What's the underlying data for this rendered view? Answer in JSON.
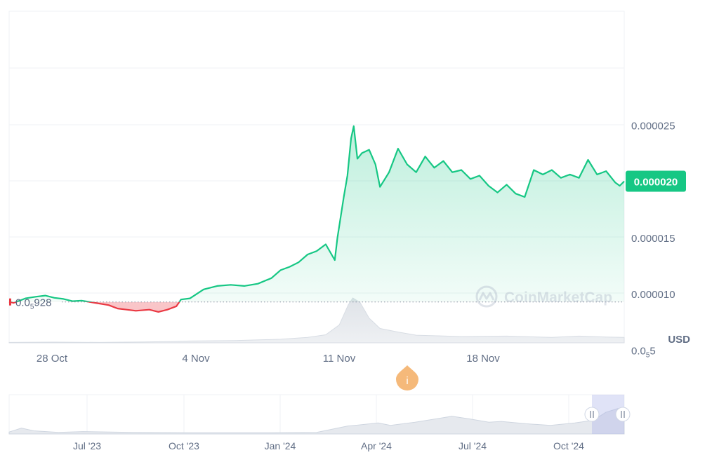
{
  "colors": {
    "up": "#16c784",
    "down": "#ea3943",
    "grid": "#eff2f5",
    "axis_text": "#616e85",
    "volume": "#e9ecf0",
    "info_badge": "#f5b97a"
  },
  "currency_label": "USD",
  "baseline_label": {
    "prefix": "0.0",
    "sub": "5",
    "suffix": "928"
  },
  "watermark": "CoinMarketCap",
  "info_badge_label": "i",
  "chart_data": {
    "type": "area",
    "x_axis_ticks": [
      "28 Oct",
      "4 Nov",
      "11 Nov",
      "18 Nov"
    ],
    "y_axis_ticks": [
      {
        "value": 2.5e-05,
        "label": "0.000025"
      },
      {
        "value": 1.5e-05,
        "label": "0.000015"
      },
      {
        "value": 1e-05,
        "label": "0.000010"
      },
      {
        "value": 5e-06,
        "prefix": "0.0",
        "sub": "5",
        "suffix": "5"
      }
    ],
    "ylim": [
      1e-06,
      3e-05
    ],
    "baseline_value": 9.282e-06,
    "current_price": {
      "value": 2e-05,
      "label": "0.000020"
    },
    "price_points": [
      [
        0.0,
        9.3e-06
      ],
      [
        0.5,
        9.2e-06
      ],
      [
        1.0,
        9.35e-06
      ],
      [
        1.8,
        9.6e-06
      ],
      [
        3.0,
        9.75e-06
      ],
      [
        4.0,
        9.85e-06
      ],
      [
        5.0,
        9.65e-06
      ],
      [
        6.0,
        9.55e-06
      ],
      [
        7.0,
        9.35e-06
      ],
      [
        8.0,
        9.4e-06
      ],
      [
        9.5,
        9.2e-06
      ],
      [
        11.0,
        9e-06
      ],
      [
        12.0,
        8.7e-06
      ],
      [
        13.0,
        8.6e-06
      ],
      [
        14.0,
        8.5e-06
      ],
      [
        15.5,
        8.6e-06
      ],
      [
        16.5,
        8.4e-06
      ],
      [
        17.5,
        8.6e-06
      ],
      [
        18.5,
        8.9e-06
      ],
      [
        19.0,
        9.5e-06
      ],
      [
        20.0,
        9.6e-06
      ],
      [
        21.5,
        1.04e-05
      ],
      [
        23.0,
        1.07e-05
      ],
      [
        24.5,
        1.08e-05
      ],
      [
        26.0,
        1.07e-05
      ],
      [
        27.5,
        1.09e-05
      ],
      [
        29.0,
        1.14e-05
      ],
      [
        30.0,
        1.21e-05
      ],
      [
        31.0,
        1.24e-05
      ],
      [
        32.0,
        1.28e-05
      ],
      [
        33.0,
        1.35e-05
      ],
      [
        34.0,
        1.38e-05
      ],
      [
        35.0,
        1.44e-05
      ],
      [
        36.0,
        1.3e-05
      ],
      [
        36.3,
        1.5e-05
      ],
      [
        37.0,
        1.86e-05
      ],
      [
        37.4,
        2.05e-05
      ],
      [
        37.8,
        2.38e-05
      ],
      [
        38.1,
        2.49e-05
      ],
      [
        38.5,
        2.2e-05
      ],
      [
        39.0,
        2.25e-05
      ],
      [
        39.8,
        2.28e-05
      ],
      [
        40.5,
        2.15e-05
      ],
      [
        41.0,
        1.95e-05
      ],
      [
        42.0,
        2.08e-05
      ],
      [
        43.0,
        2.29e-05
      ],
      [
        44.0,
        2.15e-05
      ],
      [
        45.0,
        2.08e-05
      ],
      [
        46.0,
        2.22e-05
      ],
      [
        47.0,
        2.12e-05
      ],
      [
        48.0,
        2.18e-05
      ],
      [
        49.0,
        2.08e-05
      ],
      [
        50.0,
        2.1e-05
      ],
      [
        51.0,
        2.02e-05
      ],
      [
        52.0,
        2.05e-05
      ],
      [
        53.0,
        1.96e-05
      ],
      [
        54.0,
        1.9e-05
      ],
      [
        55.0,
        1.97e-05
      ],
      [
        56.0,
        1.89e-05
      ],
      [
        57.0,
        1.86e-05
      ],
      [
        58.0,
        2.1e-05
      ],
      [
        59.0,
        2.06e-05
      ],
      [
        60.0,
        2.1e-05
      ],
      [
        61.0,
        2.03e-05
      ],
      [
        62.0,
        2.06e-05
      ],
      [
        63.0,
        2.03e-05
      ],
      [
        64.0,
        2.19e-05
      ],
      [
        65.0,
        2.06e-05
      ],
      [
        66.0,
        2.09e-05
      ],
      [
        67.0,
        1.99e-05
      ],
      [
        67.5,
        1.96e-05
      ],
      [
        68.0,
        2e-05
      ]
    ],
    "volume_points": [
      [
        0,
        0.01
      ],
      [
        5,
        0.015
      ],
      [
        10,
        0.01
      ],
      [
        15,
        0.02
      ],
      [
        18,
        0.03
      ],
      [
        20,
        0.04
      ],
      [
        25,
        0.05
      ],
      [
        30,
        0.08
      ],
      [
        33,
        0.12
      ],
      [
        35,
        0.18
      ],
      [
        36.5,
        0.4
      ],
      [
        37.5,
        0.85
      ],
      [
        38,
        1.0
      ],
      [
        38.8,
        0.9
      ],
      [
        39.8,
        0.55
      ],
      [
        41,
        0.32
      ],
      [
        43,
        0.24
      ],
      [
        45,
        0.17
      ],
      [
        50,
        0.14
      ],
      [
        55,
        0.15
      ],
      [
        60,
        0.12
      ],
      [
        63,
        0.15
      ],
      [
        66,
        0.13
      ],
      [
        68,
        0.12
      ]
    ],
    "navigator": {
      "x_axis_ticks": [
        "Jul '23",
        "Oct '23",
        "Jan '24",
        "Apr '24",
        "Jul '24",
        "Oct '24"
      ],
      "series": [
        [
          0,
          0.05
        ],
        [
          0.02,
          0.15
        ],
        [
          0.04,
          0.08
        ],
        [
          0.08,
          0.04
        ],
        [
          0.12,
          0.06
        ],
        [
          0.2,
          0.04
        ],
        [
          0.3,
          0.03
        ],
        [
          0.4,
          0.03
        ],
        [
          0.5,
          0.04
        ],
        [
          0.55,
          0.2
        ],
        [
          0.6,
          0.28
        ],
        [
          0.62,
          0.22
        ],
        [
          0.66,
          0.3
        ],
        [
          0.7,
          0.4
        ],
        [
          0.72,
          0.45
        ],
        [
          0.75,
          0.38
        ],
        [
          0.78,
          0.3
        ],
        [
          0.8,
          0.32
        ],
        [
          0.84,
          0.26
        ],
        [
          0.88,
          0.22
        ],
        [
          0.92,
          0.28
        ],
        [
          0.95,
          0.35
        ],
        [
          0.97,
          0.55
        ],
        [
          0.99,
          0.65
        ],
        [
          1.0,
          0.6
        ]
      ]
    }
  }
}
